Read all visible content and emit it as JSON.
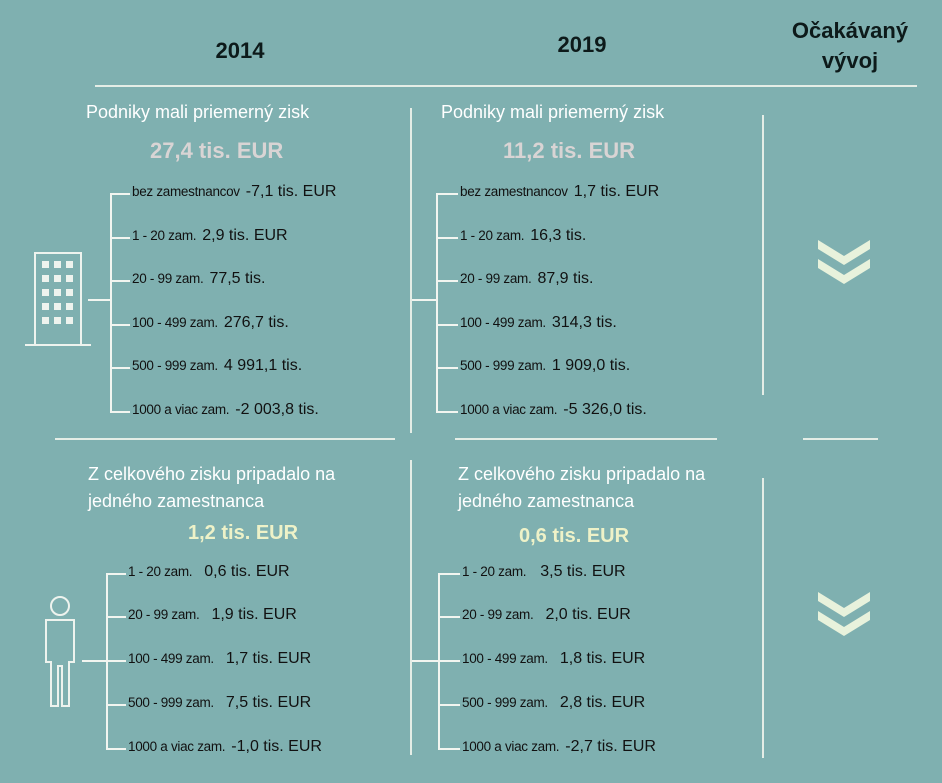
{
  "header": {
    "year1": "2014",
    "year2": "2019",
    "expected_line1": "Očakávaný",
    "expected_line2": "vývoj"
  },
  "profit": {
    "label": "Podniky mali priemerný zisk",
    "y2014": {
      "total": "27,4 tis. EUR",
      "rows": [
        {
          "cat": "bez zamestnancov",
          "val": "-7,1 tis. EUR"
        },
        {
          "cat": "1 - 20 zam.",
          "val": "2,9 tis. EUR"
        },
        {
          "cat": "20 - 99 zam.",
          "val": "77,5 tis."
        },
        {
          "cat": "100 - 499 zam.",
          "val": "276,7 tis."
        },
        {
          "cat": "500 - 999 zam.",
          "val": "4 991,1 tis."
        },
        {
          "cat": "1000 a viac zam.",
          "val": "-2 003,8 tis."
        }
      ]
    },
    "y2019": {
      "total": "11,2 tis. EUR",
      "rows": [
        {
          "cat": "bez zamestnancov",
          "val": "1,7 tis. EUR"
        },
        {
          "cat": "1 - 20 zam.",
          "val": "16,3 tis."
        },
        {
          "cat": "20 - 99 zam.",
          "val": "87,9 tis."
        },
        {
          "cat": "100 - 499 zam.",
          "val": "314,3 tis."
        },
        {
          "cat": "500 - 999 zam.",
          "val": "1 909,0 tis."
        },
        {
          "cat": "1000 a viac zam.",
          "val": "-5 326,0 tis."
        }
      ]
    }
  },
  "employee": {
    "label_line1": "Z celkového zisku pripadalo na",
    "label_line2": "jedného zamestnanca",
    "y2014": {
      "total": "1,2 tis. EUR",
      "rows": [
        {
          "cat": "1 - 20 zam.",
          "val": "0,6 tis. EUR"
        },
        {
          "cat": "20 - 99 zam.",
          "val": "1,9 tis. EUR"
        },
        {
          "cat": "100 - 499 zam.",
          "val": "1,7 tis. EUR"
        },
        {
          "cat": "500 - 999 zam.",
          "val": "7,5 tis. EUR"
        },
        {
          "cat": "1000 a viac zam.",
          "val": "-1,0 tis. EUR"
        }
      ]
    },
    "y2019": {
      "total": "0,6 tis. EUR",
      "rows": [
        {
          "cat": "1 - 20 zam.",
          "val": "3,5 tis. EUR"
        },
        {
          "cat": "20 - 99 zam.",
          "val": "2,0 tis. EUR"
        },
        {
          "cat": "100 - 499 zam.",
          "val": "1,8 tis. EUR"
        },
        {
          "cat": "500 - 999 zam.",
          "val": "2,8 tis. EUR"
        },
        {
          "cat": "1000 a viac zam.",
          "val": "-2,7 tis. EUR"
        }
      ]
    }
  },
  "colors": {
    "background": "#7fb0b0",
    "profit_total": "#d9d4d4",
    "employee_total": "#eef2c8",
    "chevron": "#e8f2dc",
    "lines": "#e4ede6"
  },
  "icons": {
    "profit": "building-icon",
    "employee": "person-icon",
    "trend": "double-chevron-down-icon"
  }
}
